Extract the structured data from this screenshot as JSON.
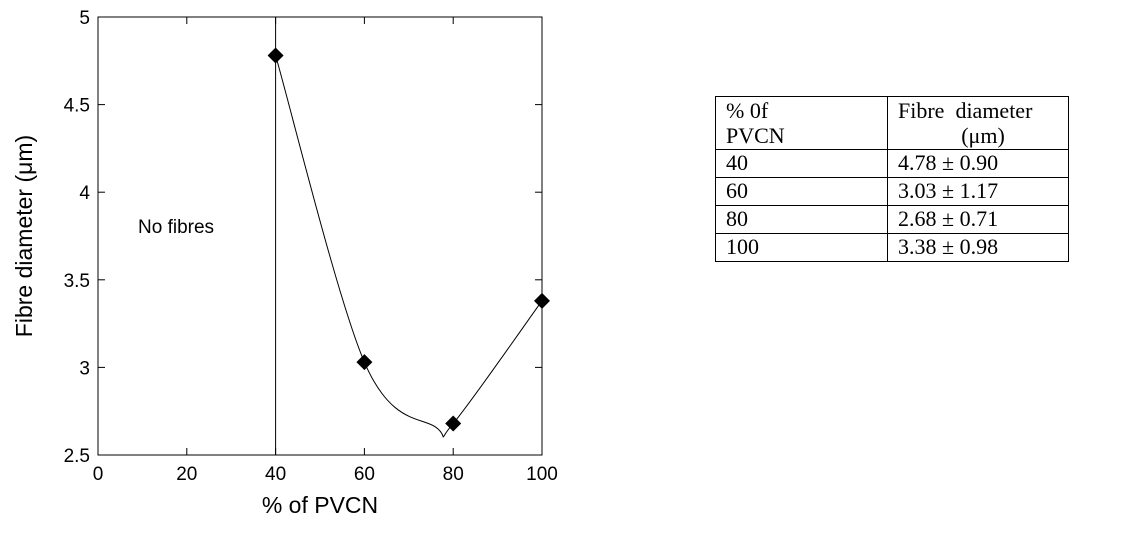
{
  "chart_data": {
    "type": "scatter",
    "xlabel": "% of PVCN",
    "ylabel": "Fibre diameter (μm)",
    "xlim": [
      0,
      100
    ],
    "ylim": [
      2.5,
      5
    ],
    "x_ticks": [
      "0",
      "20",
      "40",
      "60",
      "80",
      "100"
    ],
    "y_ticks": [
      "2.5",
      "3",
      "3.5",
      "4",
      "4.5",
      "5"
    ],
    "points": [
      {
        "x": 40,
        "y": 4.78
      },
      {
        "x": 60,
        "y": 3.03
      },
      {
        "x": 80,
        "y": 2.68
      },
      {
        "x": 100,
        "y": 3.38
      }
    ],
    "fit_curve": "smooth",
    "vertical_line_x": 40,
    "annotation": "No fibres",
    "grid": false
  },
  "table": {
    "header": {
      "col1_line1": "% 0f",
      "col1_line2": "PVCN",
      "col2_line1": "Fibre  diameter",
      "col2_line2": "(μm)"
    },
    "rows": [
      {
        "pvcn": "40",
        "diameter": "4.78 ± 0.90"
      },
      {
        "pvcn": "60",
        "diameter": "3.03 ± 1.17"
      },
      {
        "pvcn": "80",
        "diameter": "2.68 ± 0.71"
      },
      {
        "pvcn": "100",
        "diameter": "3.38 ± 0.98"
      }
    ]
  }
}
